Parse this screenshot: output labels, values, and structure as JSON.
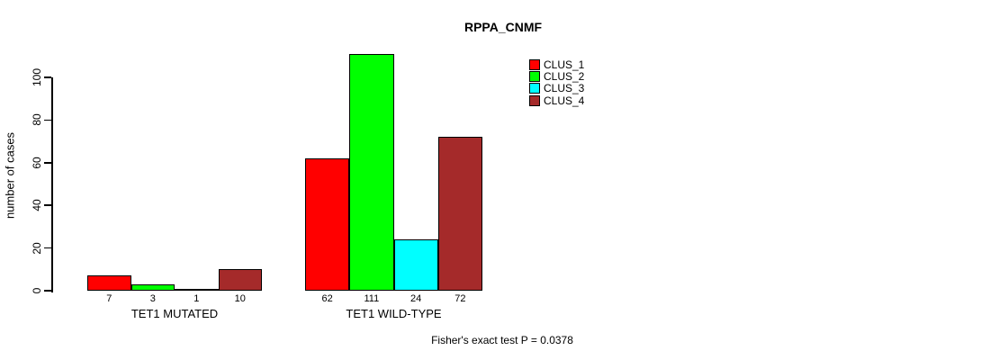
{
  "title": "RPPA_CNMF",
  "footer": "Fisher's exact test P = 0.0378",
  "chart_data": {
    "type": "bar",
    "title": "RPPA_CNMF",
    "xlabel": "",
    "ylabel": "number of cases",
    "ylim": [
      0,
      111
    ],
    "yticks": [
      0,
      20,
      40,
      60,
      80,
      100
    ],
    "grid": false,
    "legend_position": "top-right",
    "categories": [
      "TET1 MUTATED",
      "TET1 WILD-TYPE"
    ],
    "series": [
      {
        "name": "CLUS_1",
        "color": "#ff0000",
        "values": [
          7,
          62
        ]
      },
      {
        "name": "CLUS_2",
        "color": "#00ff00",
        "values": [
          3,
          111
        ]
      },
      {
        "name": "CLUS_3",
        "color": "#00ffff",
        "values": [
          1,
          24
        ]
      },
      {
        "name": "CLUS_4",
        "color": "#a52a2a",
        "values": [
          10,
          72
        ]
      }
    ],
    "bar_value_labels": [
      [
        "7",
        "3",
        "1",
        "10"
      ],
      [
        "62",
        "111",
        "24",
        "72"
      ]
    ],
    "annotation": "Fisher's exact test P = 0.0378"
  }
}
